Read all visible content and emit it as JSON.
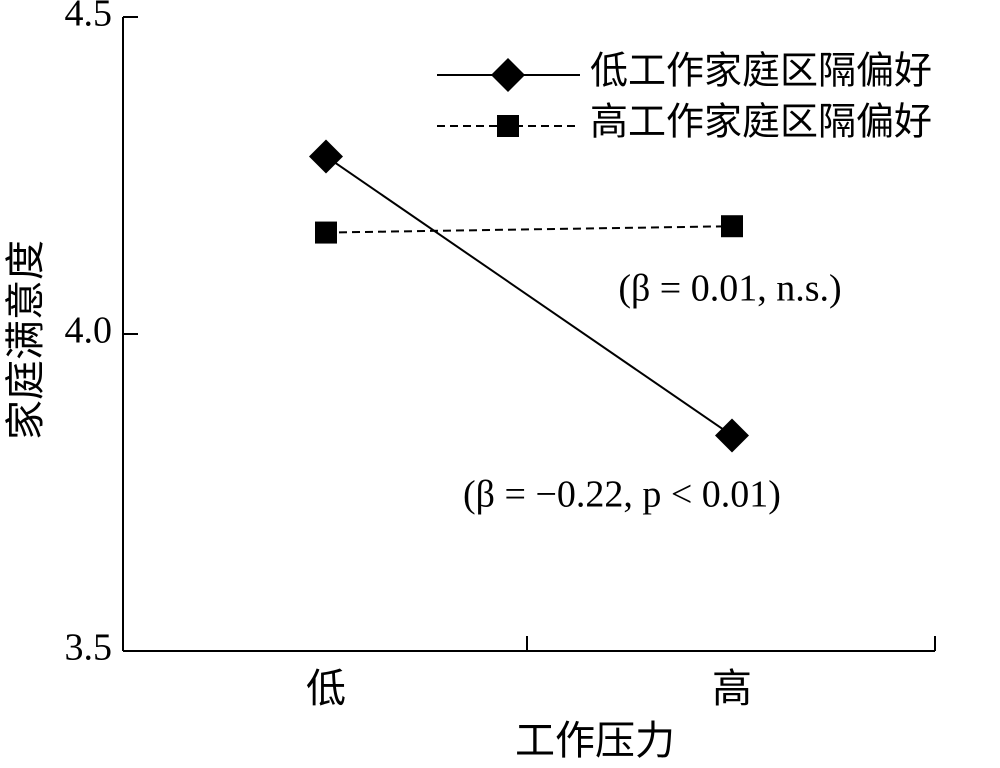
{
  "chart_data": {
    "type": "line",
    "x_label": "工作压力",
    "y_label": "家庭满意度",
    "categories": [
      "低",
      "高"
    ],
    "series": [
      {
        "name": "低工作家庭区隔偏好",
        "color": "#000000",
        "linestyle": "solid",
        "marker": "diamond",
        "values": [
          4.28,
          3.84
        ]
      },
      {
        "name": "高工作家庭区隔偏好",
        "color": "#000000",
        "linestyle": "dashed",
        "marker": "square",
        "values": [
          4.16,
          4.17
        ]
      }
    ],
    "annotations": [
      "(β = 0.01, n.s.)",
      "(β = −0.22, p < 0.01)"
    ],
    "ylim": [
      3.5,
      4.5
    ],
    "yticks": [
      3.5,
      {
        "value": 4,
        "label": "4.0"
      },
      4.5
    ],
    "legend": "upper right",
    "grid": false
  }
}
